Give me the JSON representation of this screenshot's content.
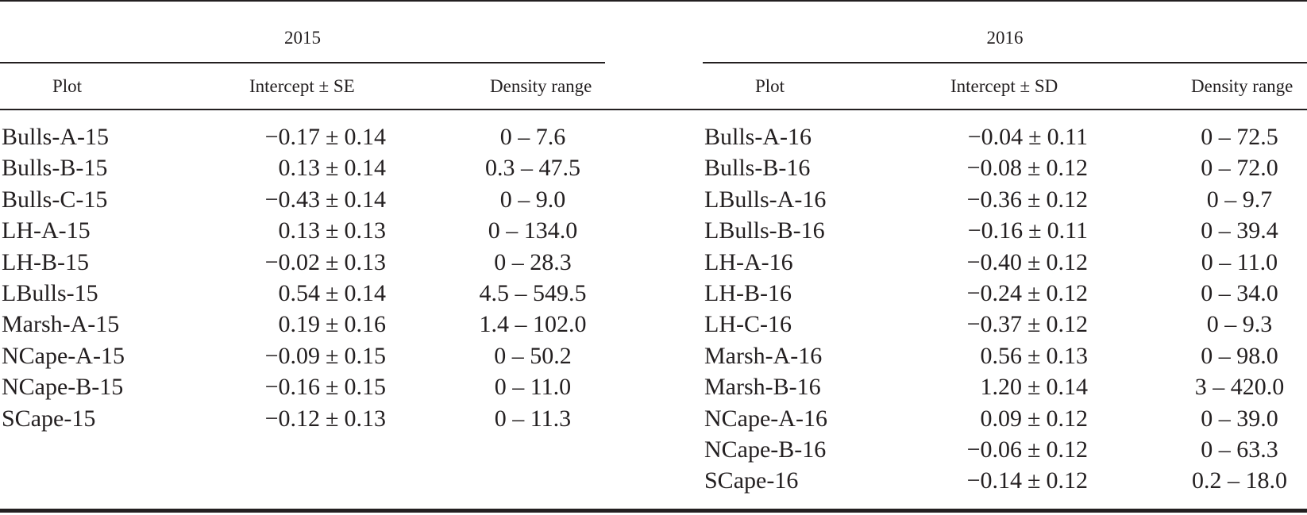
{
  "table": {
    "groups": [
      {
        "year": "2015",
        "headers": {
          "plot": "Plot",
          "intercept": "Intercept ± SE",
          "density": "Density range"
        },
        "rows": [
          {
            "plot": "Bulls-A-15",
            "intercept": "−0.17",
            "error": "0.14",
            "density": "0 – 7.6"
          },
          {
            "plot": "Bulls-B-15",
            "intercept": "0.13",
            "error": "0.14",
            "density": "0.3 – 47.5"
          },
          {
            "plot": "Bulls-C-15",
            "intercept": "−0.43",
            "error": "0.14",
            "density": "0 – 9.0"
          },
          {
            "plot": "LH-A-15",
            "intercept": "0.13",
            "error": "0.13",
            "density": "0 – 134.0"
          },
          {
            "plot": "LH-B-15",
            "intercept": "−0.02",
            "error": "0.13",
            "density": "0 – 28.3"
          },
          {
            "plot": "LBulls-15",
            "intercept": "0.54",
            "error": "0.14",
            "density": "4.5 – 549.5"
          },
          {
            "plot": "Marsh-A-15",
            "intercept": "0.19",
            "error": "0.16",
            "density": "1.4 – 102.0"
          },
          {
            "plot": "NCape-A-15",
            "intercept": "−0.09",
            "error": "0.15",
            "density": "0 – 50.2"
          },
          {
            "plot": "NCape-B-15",
            "intercept": "−0.16",
            "error": "0.15",
            "density": "0 – 11.0"
          },
          {
            "plot": "SCape-15",
            "intercept": "−0.12",
            "error": "0.13",
            "density": "0 – 11.3"
          }
        ]
      },
      {
        "year": "2016",
        "headers": {
          "plot": "Plot",
          "intercept": "Intercept ± SD",
          "density": "Density range"
        },
        "rows": [
          {
            "plot": "Bulls-A-16",
            "intercept": "−0.04",
            "error": "0.11",
            "density": "0 – 72.5"
          },
          {
            "plot": "Bulls-B-16",
            "intercept": "−0.08",
            "error": "0.12",
            "density": "0 – 72.0"
          },
          {
            "plot": "LBulls-A-16",
            "intercept": "−0.36",
            "error": "0.12",
            "density": "0 – 9.7"
          },
          {
            "plot": "LBulls-B-16",
            "intercept": "−0.16",
            "error": "0.11",
            "density": "0 – 39.4"
          },
          {
            "plot": "LH-A-16",
            "intercept": "−0.40",
            "error": "0.12",
            "density": "0 – 11.0"
          },
          {
            "plot": "LH-B-16",
            "intercept": "−0.24",
            "error": "0.12",
            "density": "0 – 34.0"
          },
          {
            "plot": "LH-C-16",
            "intercept": "−0.37",
            "error": "0.12",
            "density": "0 – 9.3"
          },
          {
            "plot": "Marsh-A-16",
            "intercept": "0.56",
            "error": "0.13",
            "density": "0 – 98.0"
          },
          {
            "plot": "Marsh-B-16",
            "intercept": "1.20",
            "error": "0.14",
            "density": "3 – 420.0"
          },
          {
            "plot": "NCape-A-16",
            "intercept": "0.09",
            "error": "0.12",
            "density": "0 – 39.0"
          },
          {
            "plot": "NCape-B-16",
            "intercept": "−0.06",
            "error": "0.12",
            "density": "0 – 63.3"
          },
          {
            "plot": "SCape-16",
            "intercept": "−0.14",
            "error": "0.12",
            "density": "0.2 – 18.0"
          }
        ]
      }
    ],
    "pm_symbol": "±"
  }
}
